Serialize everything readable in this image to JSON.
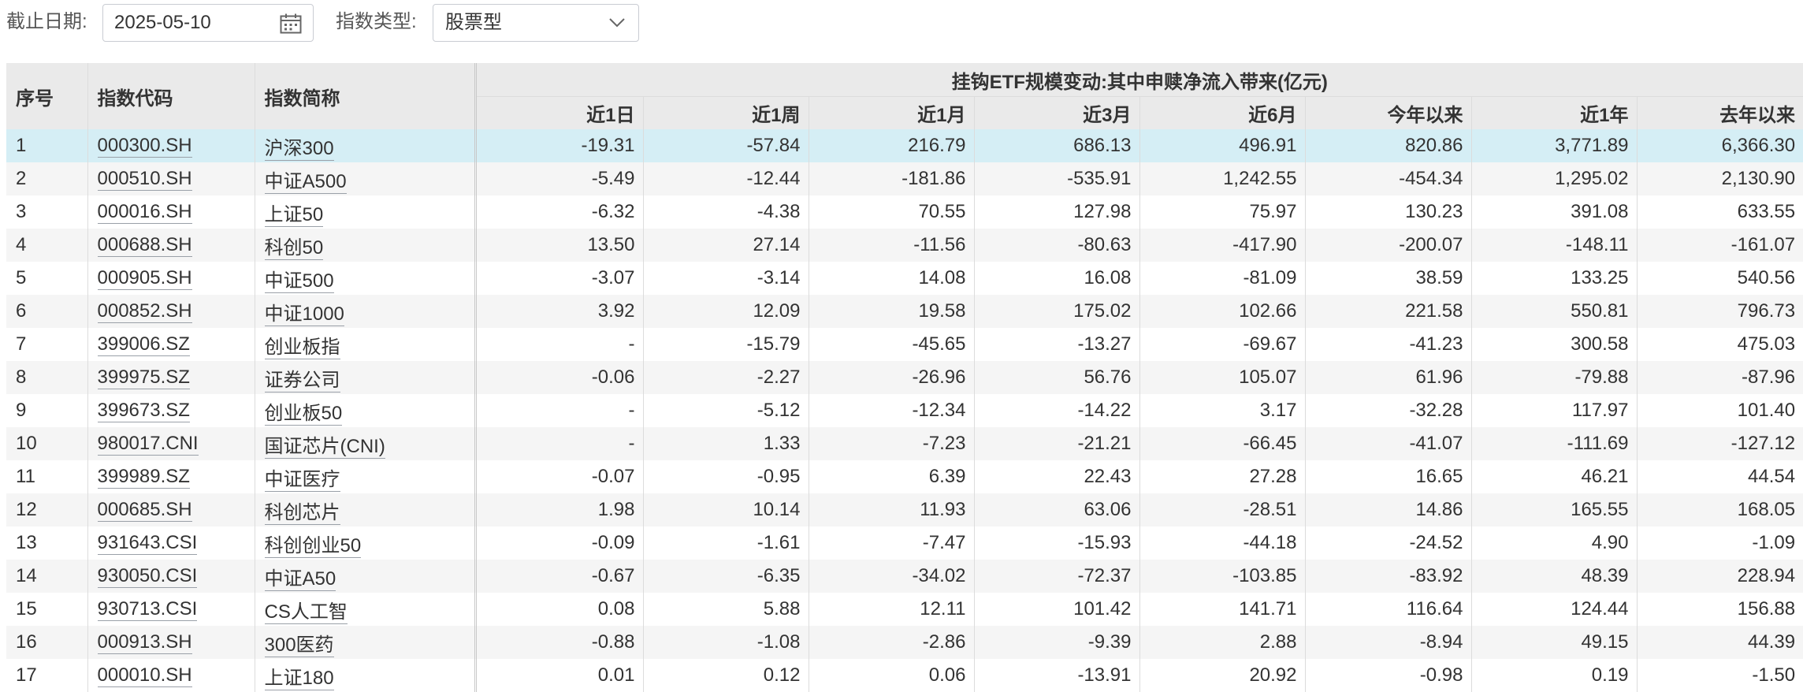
{
  "filters": {
    "date_label": "截止日期:",
    "date_value": "2025-05-10",
    "type_label": "指数类型:",
    "type_value": "股票型"
  },
  "table": {
    "headers": {
      "seq": "序号",
      "code": "指数代码",
      "name": "指数简称",
      "group": "挂钩ETF规模变动:其中申赎净流入带来(亿元)",
      "periods": [
        "近1日",
        "近1周",
        "近1月",
        "近3月",
        "近6月",
        "今年以来",
        "近1年",
        "去年以来"
      ]
    },
    "rows": [
      {
        "seq": "1",
        "code": "000300.SH",
        "name": "沪深300",
        "values": [
          "-19.31",
          "-57.84",
          "216.79",
          "686.13",
          "496.91",
          "820.86",
          "3,771.89",
          "6,366.30"
        ]
      },
      {
        "seq": "2",
        "code": "000510.SH",
        "name": "中证A500",
        "values": [
          "-5.49",
          "-12.44",
          "-181.86",
          "-535.91",
          "1,242.55",
          "-454.34",
          "1,295.02",
          "2,130.90"
        ]
      },
      {
        "seq": "3",
        "code": "000016.SH",
        "name": "上证50",
        "values": [
          "-6.32",
          "-4.38",
          "70.55",
          "127.98",
          "75.97",
          "130.23",
          "391.08",
          "633.55"
        ]
      },
      {
        "seq": "4",
        "code": "000688.SH",
        "name": "科创50",
        "values": [
          "13.50",
          "27.14",
          "-11.56",
          "-80.63",
          "-417.90",
          "-200.07",
          "-148.11",
          "-161.07"
        ]
      },
      {
        "seq": "5",
        "code": "000905.SH",
        "name": "中证500",
        "values": [
          "-3.07",
          "-3.14",
          "14.08",
          "16.08",
          "-81.09",
          "38.59",
          "133.25",
          "540.56"
        ]
      },
      {
        "seq": "6",
        "code": "000852.SH",
        "name": "中证1000",
        "values": [
          "3.92",
          "12.09",
          "19.58",
          "175.02",
          "102.66",
          "221.58",
          "550.81",
          "796.73"
        ]
      },
      {
        "seq": "7",
        "code": "399006.SZ",
        "name": "创业板指",
        "values": [
          "-",
          "-15.79",
          "-45.65",
          "-13.27",
          "-69.67",
          "-41.23",
          "300.58",
          "475.03"
        ]
      },
      {
        "seq": "8",
        "code": "399975.SZ",
        "name": "证券公司",
        "values": [
          "-0.06",
          "-2.27",
          "-26.96",
          "56.76",
          "105.07",
          "61.96",
          "-79.88",
          "-87.96"
        ]
      },
      {
        "seq": "9",
        "code": "399673.SZ",
        "name": "创业板50",
        "values": [
          "-",
          "-5.12",
          "-12.34",
          "-14.22",
          "3.17",
          "-32.28",
          "117.97",
          "101.40"
        ]
      },
      {
        "seq": "10",
        "code": "980017.CNI",
        "name": "国证芯片(CNI)",
        "values": [
          "-",
          "1.33",
          "-7.23",
          "-21.21",
          "-66.45",
          "-41.07",
          "-111.69",
          "-127.12"
        ]
      },
      {
        "seq": "11",
        "code": "399989.SZ",
        "name": "中证医疗",
        "values": [
          "-0.07",
          "-0.95",
          "6.39",
          "22.43",
          "27.28",
          "16.65",
          "46.21",
          "44.54"
        ]
      },
      {
        "seq": "12",
        "code": "000685.SH",
        "name": "科创芯片",
        "values": [
          "1.98",
          "10.14",
          "11.93",
          "63.06",
          "-28.51",
          "14.86",
          "165.55",
          "168.05"
        ]
      },
      {
        "seq": "13",
        "code": "931643.CSI",
        "name": "科创创业50",
        "values": [
          "-0.09",
          "-1.61",
          "-7.47",
          "-15.93",
          "-44.18",
          "-24.52",
          "4.90",
          "-1.09"
        ]
      },
      {
        "seq": "14",
        "code": "930050.CSI",
        "name": "中证A50",
        "values": [
          "-0.67",
          "-6.35",
          "-34.02",
          "-72.37",
          "-103.85",
          "-83.92",
          "48.39",
          "228.94"
        ]
      },
      {
        "seq": "15",
        "code": "930713.CSI",
        "name": "CS人工智",
        "values": [
          "0.08",
          "5.88",
          "12.11",
          "101.42",
          "141.71",
          "116.64",
          "124.44",
          "156.88"
        ]
      },
      {
        "seq": "16",
        "code": "000913.SH",
        "name": "300医药",
        "values": [
          "-0.88",
          "-1.08",
          "-2.86",
          "-9.39",
          "2.88",
          "-8.94",
          "49.15",
          "44.39"
        ]
      },
      {
        "seq": "17",
        "code": "000010.SH",
        "name": "上证180",
        "values": [
          "0.01",
          "0.12",
          "0.06",
          "-13.91",
          "20.92",
          "-0.98",
          "0.19",
          "-1.50"
        ]
      }
    ]
  },
  "colors": {
    "header_bg": "#eaeaea",
    "stripe_bg": "#f5f5f5",
    "selected_row_bg": "#d5eef5"
  },
  "icons": {
    "date_picker": "calendar-icon",
    "select": "chevron-down-icon"
  }
}
